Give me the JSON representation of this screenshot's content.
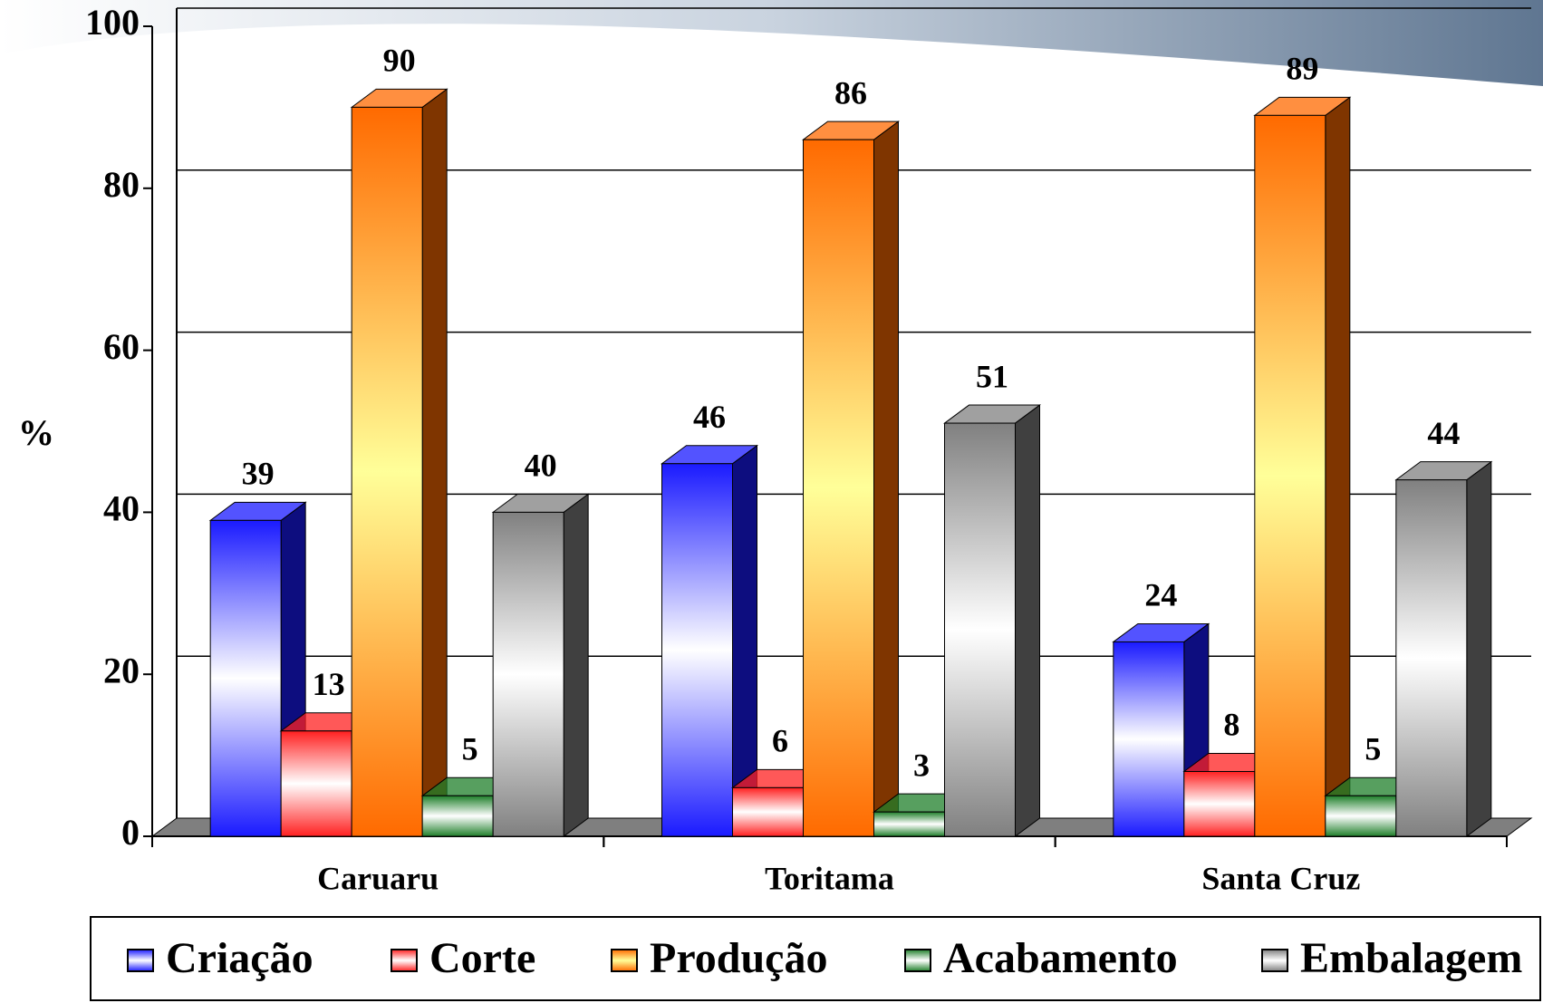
{
  "chart_data": {
    "type": "bar3d",
    "y_label": "%",
    "categories": [
      "Caruaru",
      "Toritama",
      "Santa Cruz"
    ],
    "series": [
      {
        "name": "Criação",
        "color": "#1a1aff",
        "values": [
          39,
          46,
          24
        ]
      },
      {
        "name": "Corte",
        "color": "#ff2020",
        "values": [
          13,
          6,
          8
        ]
      },
      {
        "name": "Produção",
        "color": "#ff6a00",
        "values": [
          90,
          86,
          89
        ]
      },
      {
        "name": "Acabamento",
        "color": "#1f7f2a",
        "values": [
          5,
          3,
          5
        ]
      },
      {
        "name": "Embalagem",
        "color": "#808080",
        "values": [
          40,
          51,
          44
        ]
      }
    ],
    "ylim": [
      0,
      100
    ],
    "yticks": [
      0,
      20,
      40,
      60,
      80,
      100
    ],
    "grid": true
  }
}
